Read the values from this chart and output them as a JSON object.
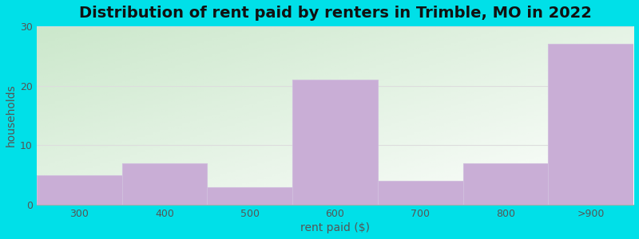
{
  "categories": [
    "300",
    "400",
    "500",
    "600",
    "700",
    "800",
    ">900"
  ],
  "values": [
    5,
    7,
    3,
    21,
    4,
    7,
    27
  ],
  "bar_color": "#c9aed6",
  "bar_edgecolor": "#d0bedd",
  "title": "Distribution of rent paid by renters in Trimble, MO in 2022",
  "xlabel": "rent paid ($)",
  "ylabel": "households",
  "ylim": [
    0,
    30
  ],
  "yticks": [
    0,
    10,
    20,
    30
  ],
  "title_fontsize": 14,
  "axis_label_fontsize": 10,
  "tick_fontsize": 9,
  "bg_topleft": "#cce8cc",
  "bg_topright": "#e8f4f8",
  "bg_bottomleft": "#e8f5e8",
  "bg_bottomright": "#f8ffff",
  "outer_bg": "#00e0e8"
}
